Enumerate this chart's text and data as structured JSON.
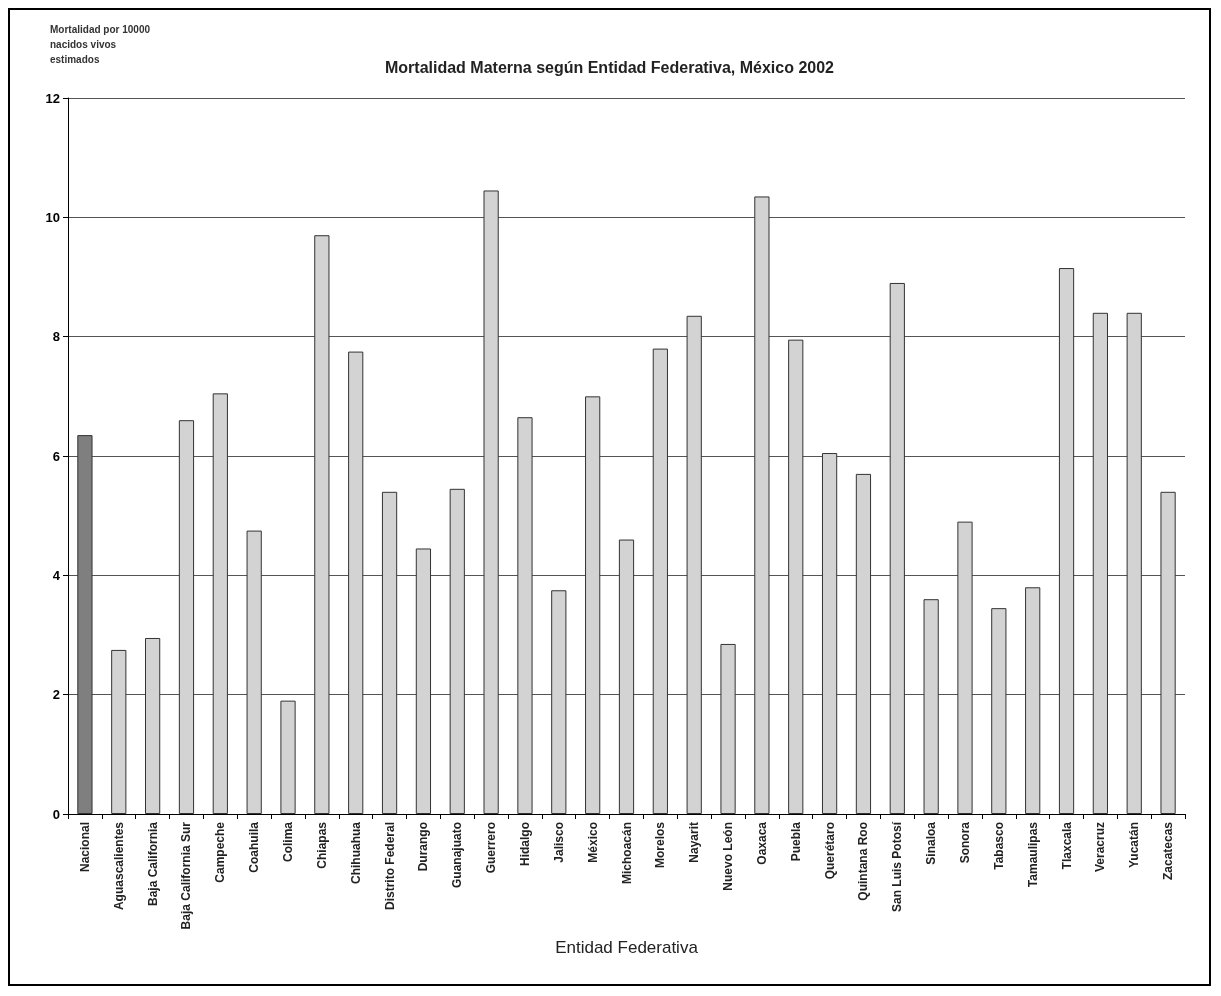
{
  "chart_data": {
    "type": "bar",
    "title": "Mortalidad Materna según Entidad Federativa, México 2002",
    "xlabel": "Entidad Federativa",
    "ylabel": "Mortalidad por 10000 nacidos vivos estimados",
    "categories": [
      "Nacional",
      "Aguascalientes",
      "Baja California",
      "Baja California Sur",
      "Campeche",
      "Coahuila",
      "Colima",
      "Chiapas",
      "Chihuahua",
      "Distrito Federal",
      "Durango",
      "Guanajuato",
      "Guerrero",
      "Hidalgo",
      "Jalisco",
      "México",
      "Michoacán",
      "Morelos",
      "Nayarit",
      "Nuevo León",
      "Oaxaca",
      "Puebla",
      "Querétaro",
      "Quintana Roo",
      "San Luis Potosí",
      "Sinaloa",
      "Sonora",
      "Tabasco",
      "Tamaulipas",
      "Tlaxcala",
      "Veracruz",
      "Yucatán",
      "Zacatecas"
    ],
    "values": [
      6.35,
      2.75,
      2.95,
      6.6,
      7.05,
      4.75,
      1.9,
      9.7,
      7.75,
      5.4,
      4.45,
      5.45,
      10.45,
      6.65,
      3.75,
      7.0,
      4.6,
      7.8,
      8.35,
      2.85,
      10.35,
      7.95,
      6.05,
      5.7,
      8.9,
      3.6,
      4.9,
      3.45,
      3.8,
      9.15,
      8.4,
      8.4,
      5.4
    ],
    "colors": [
      "#7f7f7f",
      "#d3d3d3",
      "#d3d3d3",
      "#d3d3d3",
      "#d3d3d3",
      "#d3d3d3",
      "#d3d3d3",
      "#d3d3d3",
      "#d3d3d3",
      "#d3d3d3",
      "#d3d3d3",
      "#d3d3d3",
      "#d3d3d3",
      "#d3d3d3",
      "#d3d3d3",
      "#d3d3d3",
      "#d3d3d3",
      "#d3d3d3",
      "#d3d3d3",
      "#d3d3d3",
      "#d3d3d3",
      "#d3d3d3",
      "#d3d3d3",
      "#d3d3d3",
      "#d3d3d3",
      "#d3d3d3",
      "#d3d3d3",
      "#d3d3d3",
      "#d3d3d3",
      "#d3d3d3",
      "#d3d3d3",
      "#d3d3d3",
      "#d3d3d3"
    ],
    "ylim": [
      0,
      12
    ],
    "yticks": [
      0,
      2,
      4,
      6,
      8,
      10,
      12
    ],
    "grid": "y"
  }
}
